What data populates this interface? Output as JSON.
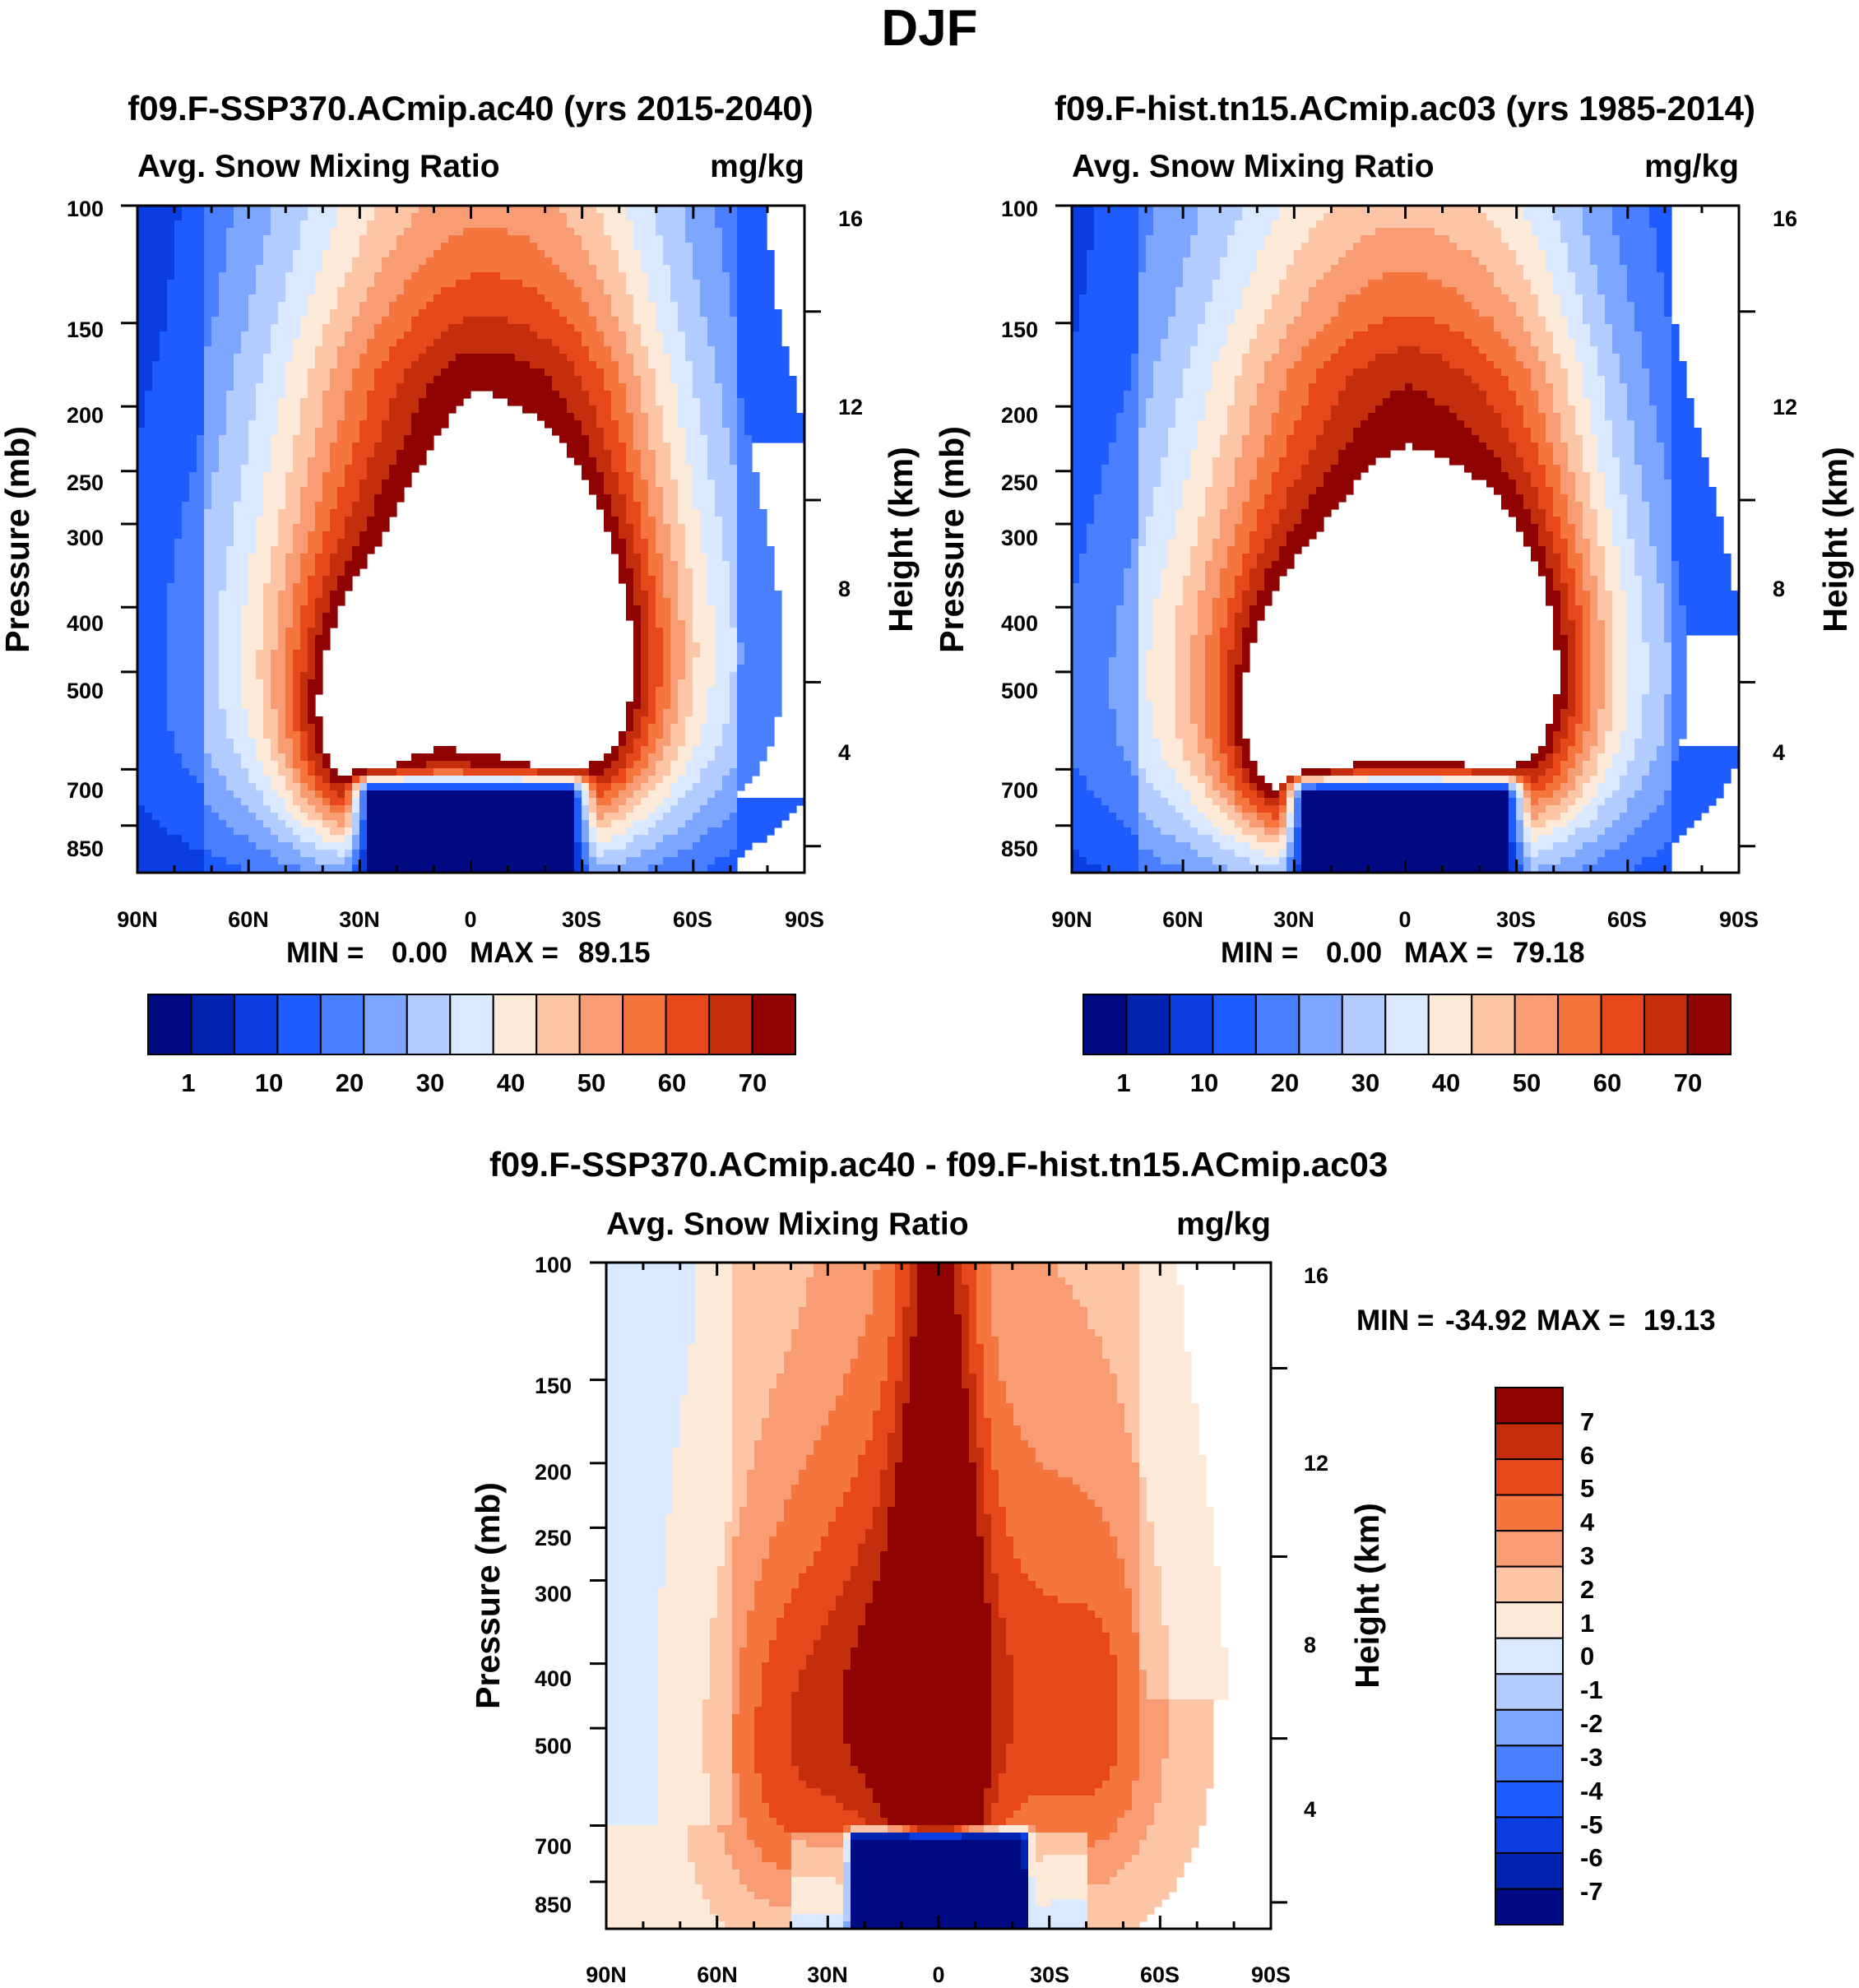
{
  "figure": {
    "title": "DJF"
  },
  "colors": {
    "diverging": [
      "#000a82",
      "#0024b0",
      "#0a3ee0",
      "#1f5cff",
      "#4a80ff",
      "#7da6ff",
      "#b3ccff",
      "#dae9ff",
      "#fde9d8",
      "#fcc5a6",
      "#f89c74",
      "#f5753f",
      "#e6481c",
      "#c42e0c",
      "#8f0303"
    ]
  },
  "chart_data": [
    {
      "type": "contour",
      "panel": "left",
      "title": "f09.F-SSP370.ACmip.ac40 (yrs 2015-2040)",
      "variable": "Avg. Snow Mixing Ratio",
      "units": "mg/kg",
      "ylabel_left": "Pressure (mb)",
      "ylabel_right": "Height (km)",
      "y_pressure_ticks": [
        "100",
        "150",
        "200",
        "250",
        "300",
        "400",
        "500",
        "700",
        "850"
      ],
      "y_height_ticks": [
        "16",
        "12",
        "8",
        "4"
      ],
      "x_ticks": [
        "90N",
        "60N",
        "30N",
        "0",
        "30S",
        "60S",
        "90S"
      ],
      "stats": {
        "min_label": "MIN =",
        "min": "0.00",
        "max_label": "MAX =",
        "max": "89.15"
      },
      "peak_lat": 0,
      "peak_pressure": 450,
      "colorbar": {
        "orientation": "horizontal",
        "labels": [
          "1",
          "10",
          "20",
          "30",
          "40",
          "50",
          "60",
          "70"
        ]
      }
    },
    {
      "type": "contour",
      "panel": "right",
      "title": "f09.F-hist.tn15.ACmip.ac03 (yrs 1985-2014)",
      "variable": "Avg. Snow Mixing Ratio",
      "units": "mg/kg",
      "ylabel_left": "Pressure (mb)",
      "ylabel_right": "Height (km)",
      "y_pressure_ticks": [
        "100",
        "150",
        "200",
        "250",
        "300",
        "400",
        "500",
        "700",
        "850"
      ],
      "y_height_ticks": [
        "16",
        "12",
        "8",
        "4"
      ],
      "x_ticks": [
        "90N",
        "60N",
        "30N",
        "0",
        "30S",
        "60S",
        "90S"
      ],
      "stats": {
        "min_label": "MIN =",
        "min": "0.00",
        "max_label": "MAX =",
        "max": "79.18"
      },
      "peak_lat": 10,
      "peak_pressure": 500,
      "colorbar": {
        "orientation": "horizontal",
        "labels": [
          "1",
          "10",
          "20",
          "30",
          "40",
          "50",
          "60",
          "70"
        ]
      }
    },
    {
      "type": "contour",
      "panel": "difference",
      "title": "f09.F-SSP370.ACmip.ac40 - f09.F-hist.tn15.ACmip.ac03",
      "variable": "Avg. Snow Mixing Ratio",
      "units": "mg/kg",
      "ylabel_left": "Pressure (mb)",
      "ylabel_right": "Height (km)",
      "y_pressure_ticks": [
        "100",
        "150",
        "200",
        "250",
        "300",
        "400",
        "500",
        "700",
        "850"
      ],
      "y_height_ticks": [
        "16",
        "12",
        "8",
        "4"
      ],
      "x_ticks": [
        "90N",
        "60N",
        "30N",
        "0",
        "30S",
        "60S",
        "90S"
      ],
      "stats": {
        "min_label": "MIN =",
        "min": "-34.92",
        "max_label": "MAX =",
        "max": "19.13"
      },
      "colorbar": {
        "orientation": "vertical",
        "labels": [
          "7",
          "6",
          "5",
          "4",
          "3",
          "2",
          "1",
          "0",
          "-1",
          "-2",
          "-3",
          "-4",
          "-5",
          "-6",
          "-7"
        ]
      }
    }
  ]
}
